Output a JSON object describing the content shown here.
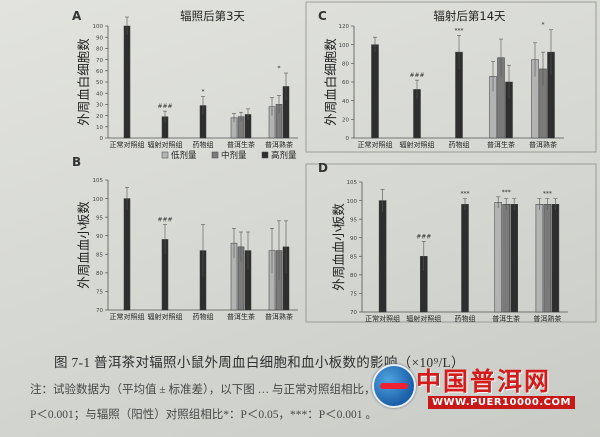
{
  "figure": {
    "caption": "图 7-1  普洱茶对辐照小鼠外周血白细胞和血小板数的影响（×10⁹/L）",
    "note_line1": "注：试验数据为（平均值 ± 标准差），以下图 … 与正常对照组相比，###：",
    "note_line2": "P＜0.001；与辐照（阳性）对照组相比*：P＜0.05，***：P＜0.001 。"
  },
  "watermark": {
    "title": "中国普洱网",
    "url": "WWW.PUER10000.COM",
    "sub": "中国普洱网"
  },
  "legend": {
    "items": [
      {
        "label": "低剂量",
        "color": "#b3b3b3"
      },
      {
        "label": "中剂量",
        "color": "#7a7a7a"
      },
      {
        "label": "高剂量",
        "color": "#2e2e2e"
      }
    ]
  },
  "chart_data": [
    {
      "panel": "A",
      "type": "bar",
      "title": "辐照后第3天",
      "ylabel": "外周血白细胞数",
      "ylim": [
        0,
        100
      ],
      "yticks": [
        0,
        10,
        20,
        30,
        40,
        50,
        60,
        70,
        80,
        90,
        100
      ],
      "categories": [
        "正常对照组",
        "辐射对照组",
        "药物组",
        "普洱生茶",
        "普洱熟茶"
      ],
      "groups": [
        {
          "label": "正常对照组",
          "bars": [
            {
              "value": 100,
              "err": 8,
              "color": "#2e2e2e"
            }
          ],
          "sig": ""
        },
        {
          "label": "辐射对照组",
          "bars": [
            {
              "value": 19,
              "err": 5,
              "color": "#2e2e2e"
            }
          ],
          "sig": "###"
        },
        {
          "label": "药物组",
          "bars": [
            {
              "value": 29,
              "err": 8,
              "color": "#2e2e2e"
            }
          ],
          "sig": "*"
        },
        {
          "label": "普洱生茶",
          "bars": [
            {
              "value": 18,
              "err": 4,
              "color": "#b3b3b3"
            },
            {
              "value": 19,
              "err": 4,
              "color": "#7a7a7a"
            },
            {
              "value": 21,
              "err": 5,
              "color": "#2e2e2e"
            }
          ],
          "sig": ""
        },
        {
          "label": "普洱熟茶",
          "bars": [
            {
              "value": 28,
              "err": 8,
              "color": "#b3b3b3"
            },
            {
              "value": 30,
              "err": 8,
              "color": "#7a7a7a"
            },
            {
              "value": 46,
              "err": 12,
              "color": "#2e2e2e"
            }
          ],
          "sig": "*"
        }
      ]
    },
    {
      "panel": "C",
      "type": "bar",
      "title": "辐射后第14天",
      "ylabel": "外周血白细胞数",
      "ylim": [
        0,
        120
      ],
      "yticks": [
        0,
        20,
        40,
        60,
        80,
        100,
        120
      ],
      "categories": [
        "正常对照组",
        "辐射对照组",
        "药物组",
        "普洱生茶",
        "普洱熟茶"
      ],
      "groups": [
        {
          "label": "正常对照组",
          "bars": [
            {
              "value": 100,
              "err": 8,
              "color": "#2e2e2e"
            }
          ],
          "sig": ""
        },
        {
          "label": "辐射对照组",
          "bars": [
            {
              "value": 52,
              "err": 10,
              "color": "#2e2e2e"
            }
          ],
          "sig": "###"
        },
        {
          "label": "药物组",
          "bars": [
            {
              "value": 92,
              "err": 18,
              "color": "#2e2e2e"
            }
          ],
          "sig": "***"
        },
        {
          "label": "普洱生茶",
          "bars": [
            {
              "value": 66,
              "err": 16,
              "color": "#b3b3b3"
            },
            {
              "value": 86,
              "err": 20,
              "color": "#7a7a7a"
            },
            {
              "value": 60,
              "err": 18,
              "color": "#2e2e2e"
            }
          ],
          "sig": ""
        },
        {
          "label": "普洱熟茶",
          "bars": [
            {
              "value": 84,
              "err": 18,
              "color": "#b3b3b3"
            },
            {
              "value": 74,
              "err": 18,
              "color": "#7a7a7a"
            },
            {
              "value": 92,
              "err": 24,
              "color": "#2e2e2e"
            }
          ],
          "sig": "*"
        }
      ]
    },
    {
      "panel": "B",
      "type": "bar",
      "title": "",
      "ylabel": "外周血血小板数",
      "ylim": [
        70,
        105
      ],
      "yticks": [
        70,
        75,
        80,
        85,
        90,
        95,
        100,
        105
      ],
      "categories": [
        "正常对照组",
        "辐射对照组",
        "药物组",
        "普洱生茶",
        "普洱熟茶"
      ],
      "groups": [
        {
          "label": "正常对照组",
          "bars": [
            {
              "value": 100,
              "err": 3,
              "color": "#2e2e2e"
            }
          ],
          "sig": ""
        },
        {
          "label": "辐射对照组",
          "bars": [
            {
              "value": 89,
              "err": 4,
              "color": "#2e2e2e"
            }
          ],
          "sig": "###"
        },
        {
          "label": "药物组",
          "bars": [
            {
              "value": 86,
              "err": 7,
              "color": "#2e2e2e"
            }
          ],
          "sig": ""
        },
        {
          "label": "普洱生茶",
          "bars": [
            {
              "value": 88,
              "err": 4,
              "color": "#b3b3b3"
            },
            {
              "value": 87,
              "err": 4,
              "color": "#7a7a7a"
            },
            {
              "value": 86,
              "err": 5,
              "color": "#2e2e2e"
            }
          ],
          "sig": ""
        },
        {
          "label": "普洱熟茶",
          "bars": [
            {
              "value": 86,
              "err": 6,
              "color": "#b3b3b3"
            },
            {
              "value": 86,
              "err": 8,
              "color": "#7a7a7a"
            },
            {
              "value": 87,
              "err": 7,
              "color": "#2e2e2e"
            }
          ],
          "sig": ""
        }
      ]
    },
    {
      "panel": "D",
      "type": "bar",
      "title": "",
      "ylabel": "外周血血小板数",
      "ylim": [
        70,
        105
      ],
      "yticks": [
        70,
        75,
        80,
        85,
        90,
        95,
        100,
        105
      ],
      "categories": [
        "正常对照组",
        "辐射对照组",
        "药物组",
        "普洱生茶",
        "普洱熟茶"
      ],
      "groups": [
        {
          "label": "正常对照组",
          "bars": [
            {
              "value": 100,
              "err": 3,
              "color": "#2e2e2e"
            }
          ],
          "sig": ""
        },
        {
          "label": "辐射对照组",
          "bars": [
            {
              "value": 85,
              "err": 4,
              "color": "#2e2e2e"
            }
          ],
          "sig": "###"
        },
        {
          "label": "药物组",
          "bars": [
            {
              "value": 99,
              "err": 1.5,
              "color": "#2e2e2e"
            }
          ],
          "sig": "***"
        },
        {
          "label": "普洱生茶",
          "bars": [
            {
              "value": 99.5,
              "err": 1.5,
              "color": "#b3b3b3"
            },
            {
              "value": 99,
              "err": 1.5,
              "color": "#7a7a7a"
            },
            {
              "value": 99,
              "err": 1.5,
              "color": "#2e2e2e"
            }
          ],
          "sig": "***"
        },
        {
          "label": "普洱熟茶",
          "bars": [
            {
              "value": 99,
              "err": 1.5,
              "color": "#b3b3b3"
            },
            {
              "value": 99,
              "err": 1.5,
              "color": "#7a7a7a"
            },
            {
              "value": 99,
              "err": 1.5,
              "color": "#2e2e2e"
            }
          ],
          "sig": "***"
        }
      ]
    }
  ]
}
